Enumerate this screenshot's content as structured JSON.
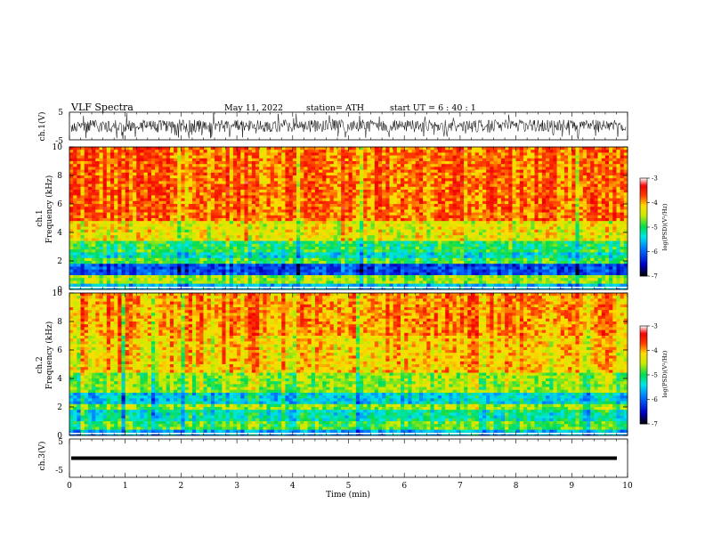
{
  "header": {
    "title": "VLF  Spectra",
    "date": "May 11, 2022",
    "station": "station= ATH",
    "start_ut": "start  UT  =   6  : 40 : 1"
  },
  "chart_data": {
    "type": "heatmap",
    "x": {
      "label": "Time  (min)",
      "range": [
        0,
        10
      ],
      "ticks": [
        "0",
        "1",
        "2",
        "3",
        "4",
        "5",
        "6",
        "7",
        "8",
        "9",
        "10"
      ]
    },
    "panels": [
      {
        "name": "ch.1",
        "kind": "waveform",
        "ylabel": "ch.1(V)",
        "ylim": [
          -5,
          5
        ],
        "yticks": [
          "5",
          "-5"
        ],
        "color": "#000000"
      },
      {
        "name": "ch.1",
        "kind": "spectrogram",
        "ylabel_top": "ch.1",
        "ylabel": "Frequency  (kHz)",
        "ylim": [
          0,
          10
        ],
        "yticks": [
          "0",
          "2",
          "4",
          "6",
          "8",
          "10"
        ],
        "bands_khz": [
          {
            "from": 0.0,
            "to": 0.5,
            "level": -5.6
          },
          {
            "from": 0.5,
            "to": 1.0,
            "level": -4.6
          },
          {
            "from": 1.0,
            "to": 1.8,
            "level": -6.1
          },
          {
            "from": 1.8,
            "to": 2.2,
            "level": -4.9
          },
          {
            "from": 2.2,
            "to": 2.6,
            "level": -5.3
          },
          {
            "from": 2.6,
            "to": 3.5,
            "level": -5.0
          },
          {
            "from": 3.5,
            "to": 4.8,
            "level": -4.3
          },
          {
            "from": 4.8,
            "to": 10.0,
            "level": -3.8
          }
        ],
        "colorbar": {
          "label": "log(PSD)(V²/Hz)",
          "range": [
            -7,
            -3
          ],
          "ticks": [
            "-3",
            "-4",
            "-5",
            "-6",
            "-7"
          ]
        }
      },
      {
        "name": "ch.2",
        "kind": "spectrogram",
        "ylabel_top": "ch.2",
        "ylabel": "Frequency  (kHz)",
        "ylim": [
          0,
          10
        ],
        "yticks": [
          "0",
          "2",
          "4",
          "6",
          "8",
          "10"
        ],
        "bands_khz": [
          {
            "from": 0.0,
            "to": 0.5,
            "level": -5.6
          },
          {
            "from": 0.5,
            "to": 1.0,
            "level": -4.8
          },
          {
            "from": 1.0,
            "to": 1.8,
            "level": -5.2
          },
          {
            "from": 1.8,
            "to": 2.2,
            "level": -4.6
          },
          {
            "from": 2.2,
            "to": 3.0,
            "level": -5.4
          },
          {
            "from": 3.0,
            "to": 4.5,
            "level": -4.6
          },
          {
            "from": 4.5,
            "to": 7.0,
            "level": -4.1
          },
          {
            "from": 7.0,
            "to": 10.0,
            "level": -3.9
          }
        ],
        "colorbar": {
          "label": "log(PSD)(V²/Hz)",
          "range": [
            -7,
            -3
          ],
          "ticks": [
            "-3",
            "-4",
            "-5",
            "-6",
            "-7"
          ]
        }
      },
      {
        "name": "ch.3",
        "kind": "waveform",
        "ylabel": "ch.3(V)",
        "ylim": [
          -5,
          5
        ],
        "yticks": [
          "5",
          "-5"
        ],
        "flat_value": 0,
        "color": "#000000"
      }
    ]
  }
}
